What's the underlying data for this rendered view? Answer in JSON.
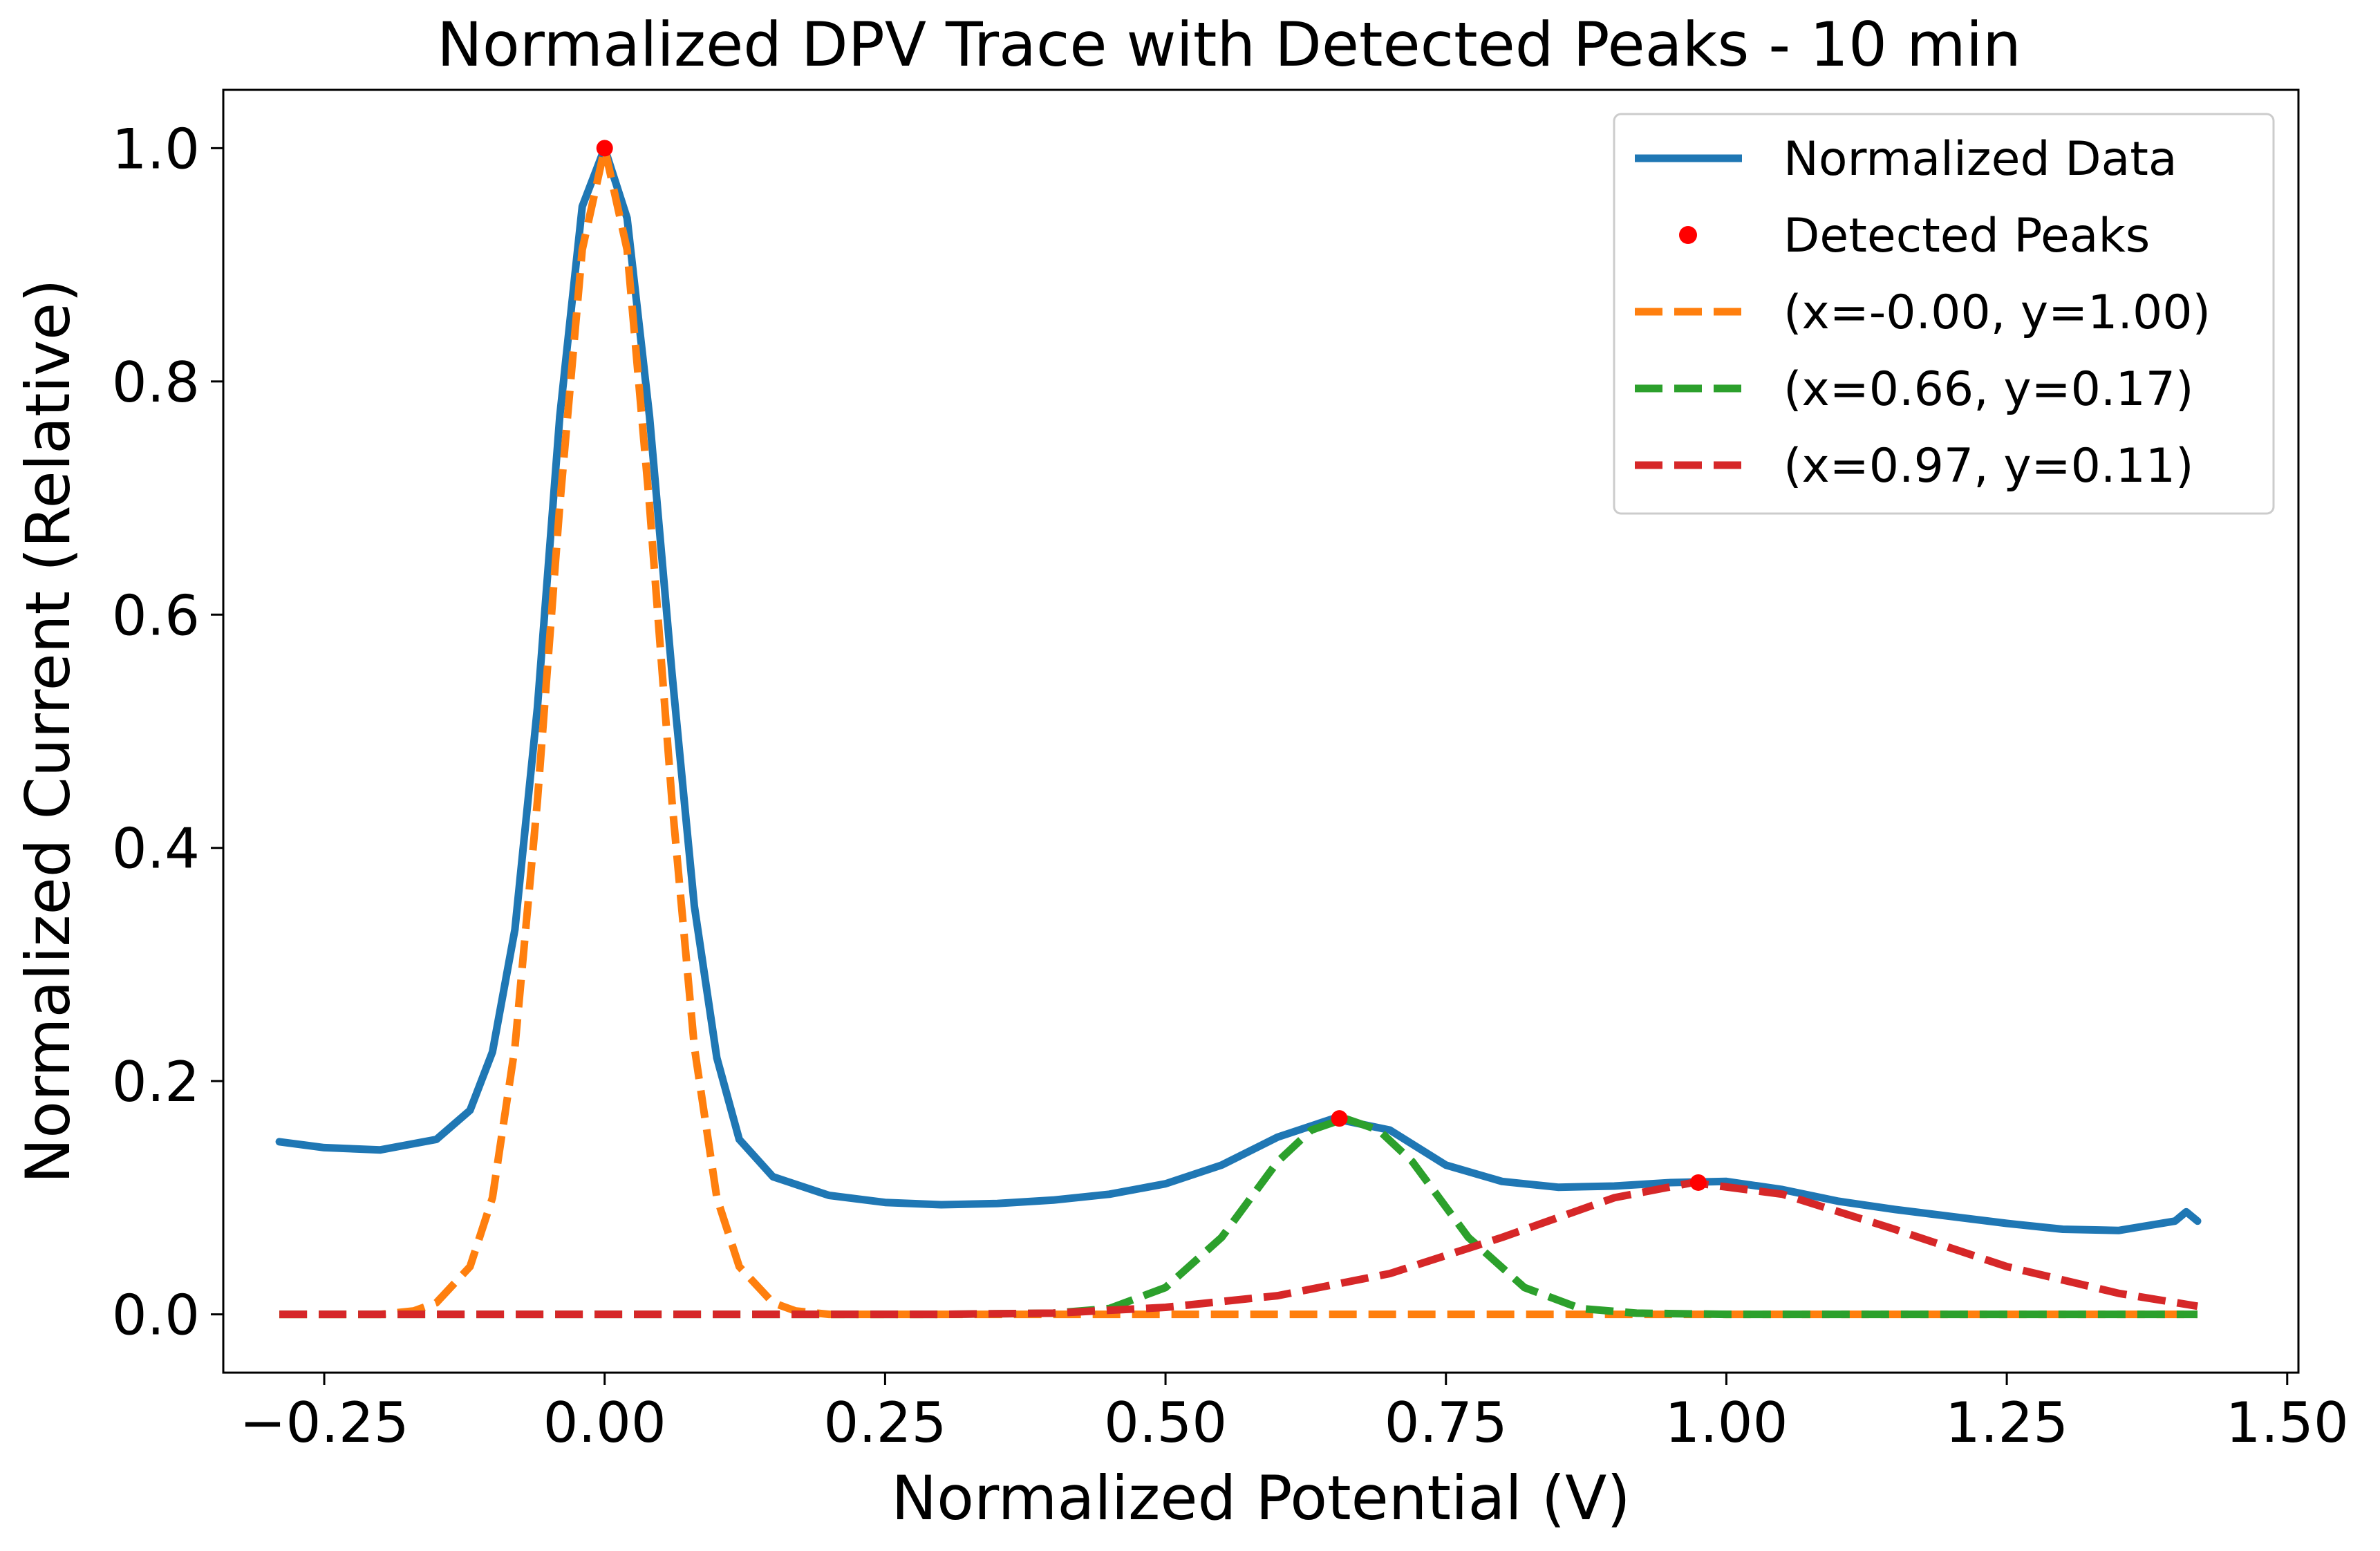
{
  "chart_data": {
    "type": "line",
    "title": "Normalized DPV Trace with Detected Peaks - 10 min",
    "xlabel": "Normalized Potential (V)",
    "ylabel": "Normalized Current (Relative)",
    "xlim": [
      -0.34,
      1.51
    ],
    "ylim": [
      -0.05,
      1.05
    ],
    "xticks": [
      -0.25,
      0.0,
      0.25,
      0.5,
      0.75,
      1.0,
      1.25,
      1.5
    ],
    "xtick_labels": [
      "−0.25",
      "0.00",
      "0.25",
      "0.50",
      "0.75",
      "1.00",
      "1.25",
      "1.50"
    ],
    "yticks": [
      0.0,
      0.2,
      0.4,
      0.6,
      0.8,
      1.0
    ],
    "ytick_labels": [
      "0.0",
      "0.2",
      "0.4",
      "0.6",
      "0.8",
      "1.0"
    ],
    "grid": false,
    "legend_position": "top-right",
    "series": [
      {
        "name": "Normalized Data",
        "color": "#1f77b4",
        "style": "solid",
        "x": [
          -0.29,
          -0.25,
          -0.2,
          -0.15,
          -0.12,
          -0.1,
          -0.08,
          -0.06,
          -0.04,
          -0.02,
          0.0,
          0.02,
          0.04,
          0.06,
          0.08,
          0.1,
          0.12,
          0.15,
          0.2,
          0.25,
          0.3,
          0.35,
          0.4,
          0.45,
          0.5,
          0.55,
          0.6,
          0.65,
          0.7,
          0.75,
          0.8,
          0.85,
          0.9,
          0.95,
          1.0,
          1.05,
          1.1,
          1.15,
          1.2,
          1.25,
          1.3,
          1.35,
          1.4,
          1.41,
          1.42
        ],
        "y": [
          0.148,
          0.143,
          0.141,
          0.15,
          0.175,
          0.225,
          0.33,
          0.52,
          0.77,
          0.95,
          1.0,
          0.94,
          0.77,
          0.55,
          0.35,
          0.22,
          0.15,
          0.118,
          0.102,
          0.096,
          0.094,
          0.095,
          0.098,
          0.103,
          0.112,
          0.128,
          0.152,
          0.168,
          0.158,
          0.128,
          0.114,
          0.109,
          0.11,
          0.113,
          0.114,
          0.107,
          0.097,
          0.09,
          0.084,
          0.078,
          0.073,
          0.072,
          0.08,
          0.088,
          0.08
        ]
      },
      {
        "name": "(x=-0.00, y=1.00)",
        "color": "#ff7f0e",
        "style": "dashed",
        "x": [
          -0.29,
          -0.25,
          -0.2,
          -0.17,
          -0.15,
          -0.12,
          -0.1,
          -0.08,
          -0.06,
          -0.04,
          -0.02,
          0.0,
          0.02,
          0.04,
          0.06,
          0.08,
          0.1,
          0.12,
          0.15,
          0.17,
          0.2,
          0.3,
          0.5,
          0.8,
          1.0,
          1.2,
          1.42
        ],
        "y": [
          0.0,
          0.0,
          0.0,
          0.003,
          0.01,
          0.041,
          0.1,
          0.229,
          0.44,
          0.694,
          0.913,
          1.0,
          0.913,
          0.694,
          0.44,
          0.229,
          0.1,
          0.041,
          0.01,
          0.003,
          0.0,
          0.0,
          0.0,
          0.0,
          0.0,
          0.0,
          0.0
        ]
      },
      {
        "name": "(x=0.66, y=0.17)",
        "color": "#2ca02c",
        "style": "dashed",
        "x": [
          -0.29,
          0.0,
          0.3,
          0.4,
          0.45,
          0.5,
          0.55,
          0.6,
          0.63,
          0.66,
          0.69,
          0.72,
          0.77,
          0.82,
          0.87,
          0.92,
          1.0,
          1.2,
          1.42
        ],
        "y": [
          0.0,
          0.0,
          0.0,
          0.001,
          0.005,
          0.023,
          0.066,
          0.131,
          0.158,
          0.168,
          0.158,
          0.131,
          0.066,
          0.023,
          0.005,
          0.001,
          0.0,
          0.0,
          0.0
        ]
      },
      {
        "name": "(x=0.97, y=0.11)",
        "color": "#d62728",
        "style": "dashed",
        "x": [
          -0.29,
          0.0,
          0.3,
          0.4,
          0.5,
          0.6,
          0.7,
          0.8,
          0.9,
          0.97,
          1.05,
          1.15,
          1.25,
          1.35,
          1.42
        ],
        "y": [
          0.0,
          0.0,
          0.0,
          0.001,
          0.006,
          0.016,
          0.035,
          0.066,
          0.1,
          0.113,
          0.103,
          0.073,
          0.041,
          0.018,
          0.007
        ]
      }
    ],
    "detected_peaks": {
      "name": "Detected Peaks",
      "color": "#ff0000",
      "x": [
        0.0,
        0.655,
        0.975
      ],
      "y": [
        1.0,
        0.168,
        0.113
      ]
    }
  }
}
